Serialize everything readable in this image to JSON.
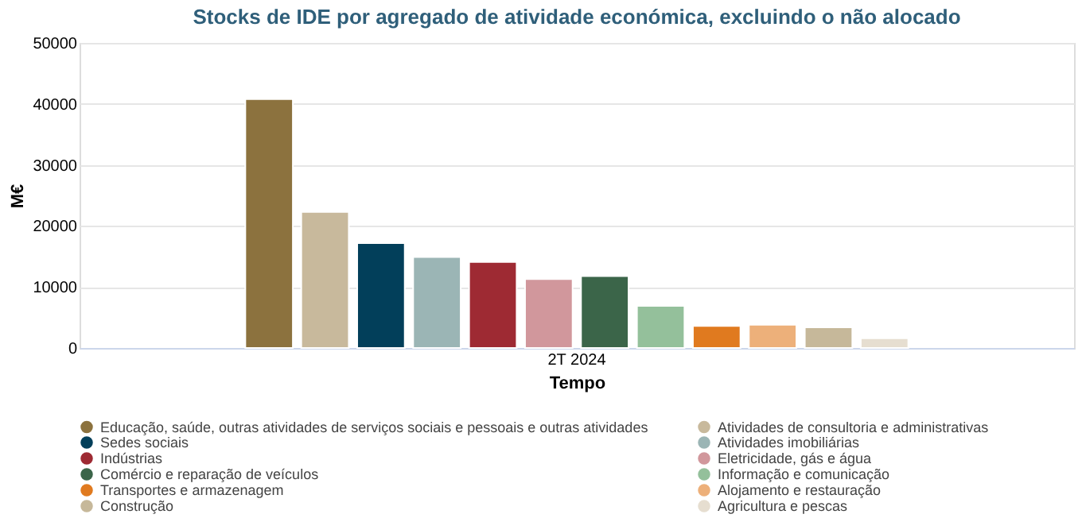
{
  "chart_data": {
    "type": "bar",
    "title": "Stocks de IDE por agregado de atividade económica, excluindo o não alocado",
    "xlabel": "Tempo",
    "ylabel": "M€",
    "categories": [
      "2T 2024"
    ],
    "ylim": [
      0,
      50000
    ],
    "yticks": [
      0,
      10000,
      20000,
      30000,
      40000,
      50000
    ],
    "grid": "y",
    "legend": "bottom",
    "series": [
      {
        "name": "Educação, saúde, outras atividades de serviços sociais e pessoais e outras atividades",
        "color": "#8c723e",
        "values": [
          40800
        ]
      },
      {
        "name": "Atividades de consultoria e administrativas",
        "color": "#c8b99c",
        "values": [
          22300
        ]
      },
      {
        "name": "Sedes sociais",
        "color": "#023f5a",
        "values": [
          17200
        ]
      },
      {
        "name": "Atividades imobiliárias",
        "color": "#9bb5b5",
        "values": [
          14900
        ]
      },
      {
        "name": "Indústrias",
        "color": "#9e2a33",
        "values": [
          14100
        ]
      },
      {
        "name": "Eletricidade, gás e água",
        "color": "#d1979c",
        "values": [
          11300
        ]
      },
      {
        "name": "Comércio e reparação de veículos",
        "color": "#3b6549",
        "values": [
          11800
        ]
      },
      {
        "name": "Informação e comunicação",
        "color": "#94c09b",
        "values": [
          6900
        ]
      },
      {
        "name": "Transportes e armazenagem",
        "color": "#e07a1f",
        "values": [
          3600
        ]
      },
      {
        "name": "Alojamento e restauração",
        "color": "#edb07a",
        "values": [
          3800
        ]
      },
      {
        "name": "Construção",
        "color": "#c6b89a",
        "values": [
          3400
        ]
      },
      {
        "name": "Agricultura e pescas",
        "color": "#e6ded0",
        "values": [
          1600
        ]
      }
    ]
  }
}
